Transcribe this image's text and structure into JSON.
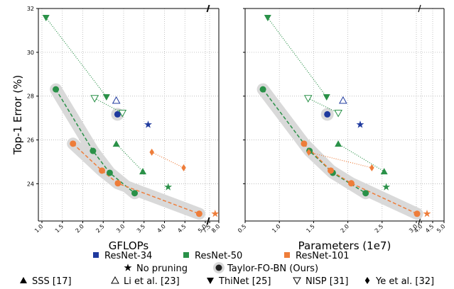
{
  "chart_data": [
    {
      "type": "scatter",
      "xlabel": "GFLOPs",
      "ylabel": "Top-1 Error (%)",
      "ylim": [
        22.3,
        32
      ],
      "yticks": [
        24,
        26,
        28,
        30,
        32
      ],
      "x_break": "broken axis between 5.0 and 7.5",
      "xticks": [
        "1.0",
        "1.5",
        "2.0",
        "2.5",
        "3.0",
        "3.5",
        "4.0",
        "4.5",
        "5.0",
        "7.5",
        "8.0"
      ],
      "grid": true,
      "series": [
        {
          "name": "ResNet-34",
          "color": "#1f3a9e",
          "points": [
            {
              "x": 2.85,
              "y": 27.17,
              "marker": "circle",
              "group": "taylor"
            },
            {
              "x": 2.82,
              "y": 27.8,
              "marker": "triangle-up-open",
              "group": "li"
            },
            {
              "x": 3.6,
              "y": 26.7,
              "marker": "star",
              "group": "nopruning"
            }
          ]
        },
        {
          "name": "ResNet-50",
          "color": "#2a9148",
          "points": [
            {
              "x": 1.34,
              "y": 28.31,
              "marker": "circle",
              "group": "taylor"
            },
            {
              "x": 2.25,
              "y": 25.5,
              "marker": "circle",
              "group": "taylor"
            },
            {
              "x": 2.66,
              "y": 24.5,
              "marker": "circle",
              "group": "taylor"
            },
            {
              "x": 3.27,
              "y": 23.57,
              "marker": "circle",
              "group": "taylor"
            },
            {
              "x": 4.09,
              "y": 23.85,
              "marker": "star",
              "group": "nopruning"
            },
            {
              "x": 2.82,
              "y": 25.82,
              "marker": "triangle-up",
              "group": "sss"
            },
            {
              "x": 3.47,
              "y": 24.56,
              "marker": "triangle-up",
              "group": "sss"
            },
            {
              "x": 1.1,
              "y": 31.58,
              "marker": "triangle-down",
              "group": "thinet"
            },
            {
              "x": 2.58,
              "y": 27.96,
              "marker": "triangle-down",
              "group": "thinet"
            },
            {
              "x": 2.29,
              "y": 27.9,
              "marker": "triangle-down-open",
              "group": "nisp"
            },
            {
              "x": 2.97,
              "y": 27.23,
              "marker": "triangle-down-open",
              "group": "nisp"
            }
          ]
        },
        {
          "name": "ResNet-101",
          "color": "#ee7d3a",
          "points": [
            {
              "x": 1.76,
              "y": 25.83,
              "marker": "circle",
              "group": "taylor"
            },
            {
              "x": 2.47,
              "y": 24.6,
              "marker": "circle",
              "group": "taylor"
            },
            {
              "x": 2.86,
              "y": 24.02,
              "marker": "circle",
              "group": "taylor"
            },
            {
              "x": 4.85,
              "y": 22.63,
              "marker": "circle",
              "group": "taylor"
            },
            {
              "x": 7.8,
              "y": 22.63,
              "marker": "star",
              "group": "nopruning"
            },
            {
              "x": 3.69,
              "y": 25.44,
              "marker": "diamond",
              "group": "ye"
            },
            {
              "x": 4.47,
              "y": 24.73,
              "marker": "diamond",
              "group": "ye"
            }
          ]
        }
      ]
    },
    {
      "type": "scatter",
      "xlabel": "Parameters (1e7)",
      "ylabel": "",
      "ylim": [
        22.3,
        32
      ],
      "yticks": [
        24,
        26,
        28,
        30,
        32
      ],
      "x_break": "broken axis between 3.0 and 4.0",
      "xticks": [
        "0.5",
        "1.0",
        "1.5",
        "2.0",
        "2.5",
        "3.0",
        "4.0",
        "4.5",
        "5.0"
      ],
      "grid": true,
      "series": [
        {
          "name": "ResNet-34",
          "color": "#1f3a9e",
          "points": [
            {
              "x": 1.7,
              "y": 27.17,
              "marker": "circle",
              "group": "taylor"
            },
            {
              "x": 1.93,
              "y": 27.8,
              "marker": "triangle-up-open",
              "group": "li"
            },
            {
              "x": 2.18,
              "y": 26.7,
              "marker": "star",
              "group": "nopruning"
            }
          ]
        },
        {
          "name": "ResNet-50",
          "color": "#2a9148",
          "points": [
            {
              "x": 0.76,
              "y": 28.31,
              "marker": "circle",
              "group": "taylor"
            },
            {
              "x": 1.44,
              "y": 25.5,
              "marker": "circle",
              "group": "taylor"
            },
            {
              "x": 1.78,
              "y": 24.5,
              "marker": "circle",
              "group": "taylor"
            },
            {
              "x": 2.26,
              "y": 23.57,
              "marker": "circle",
              "group": "taylor"
            },
            {
              "x": 2.56,
              "y": 23.85,
              "marker": "star",
              "group": "nopruning"
            },
            {
              "x": 1.86,
              "y": 25.82,
              "marker": "triangle-up",
              "group": "sss"
            },
            {
              "x": 2.53,
              "y": 24.56,
              "marker": "triangle-up",
              "group": "sss"
            },
            {
              "x": 0.83,
              "y": 31.58,
              "marker": "triangle-down",
              "group": "thinet"
            },
            {
              "x": 1.69,
              "y": 27.96,
              "marker": "triangle-down",
              "group": "thinet"
            },
            {
              "x": 1.42,
              "y": 27.9,
              "marker": "triangle-down-open",
              "group": "nisp"
            },
            {
              "x": 1.86,
              "y": 27.23,
              "marker": "triangle-down-open",
              "group": "nisp"
            }
          ]
        },
        {
          "name": "ResNet-101",
          "color": "#ee7d3a",
          "points": [
            {
              "x": 1.36,
              "y": 25.83,
              "marker": "circle",
              "group": "taylor"
            },
            {
              "x": 1.75,
              "y": 24.6,
              "marker": "circle",
              "group": "taylor"
            },
            {
              "x": 2.05,
              "y": 24.02,
              "marker": "circle",
              "group": "taylor"
            },
            {
              "x": 3.15,
              "y": 22.63,
              "marker": "circle",
              "group": "taylor"
            },
            {
              "x": 4.25,
              "y": 22.63,
              "marker": "star",
              "group": "nopruning"
            },
            {
              "x": 1.43,
              "y": 25.44,
              "marker": "diamond",
              "group": "ye"
            },
            {
              "x": 2.35,
              "y": 24.73,
              "marker": "diamond",
              "group": "ye"
            }
          ]
        }
      ]
    }
  ],
  "legend": {
    "row1": [
      {
        "label": "ResNet-34",
        "color": "#1f3a9e",
        "marker": "square"
      },
      {
        "label": "ResNet-50",
        "color": "#2a9148",
        "marker": "square"
      },
      {
        "label": "ResNet-101",
        "color": "#ee7d3a",
        "marker": "square"
      }
    ],
    "row2": [
      {
        "label": "No pruning",
        "marker": "star"
      },
      {
        "label": "Taylor-FO-BN (Ours)",
        "marker": "circle-halo"
      }
    ],
    "row3": [
      {
        "label": "SSS [17]",
        "marker": "triangle-up"
      },
      {
        "label": "Li et al. [23]",
        "marker": "triangle-up-open"
      },
      {
        "label": "ThiNet [25]",
        "marker": "triangle-down"
      },
      {
        "label": "NISP [31]",
        "marker": "triangle-down-open"
      },
      {
        "label": "Ye et al. [32]",
        "marker": "diamond"
      }
    ]
  }
}
